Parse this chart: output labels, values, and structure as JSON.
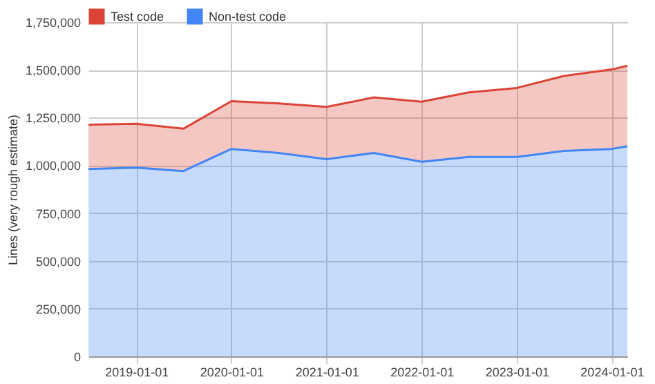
{
  "chart_data": {
    "type": "area",
    "stacked": true,
    "ylabel": "Lines (very rough estimate)",
    "x": [
      "2018-07-01",
      "2019-01-01",
      "2019-07-01",
      "2020-01-01",
      "2020-07-01",
      "2021-01-01",
      "2021-07-01",
      "2022-01-01",
      "2022-07-01",
      "2023-01-01",
      "2023-07-01",
      "2024-01-01",
      "2024-03-01"
    ],
    "series": [
      {
        "name": "Non-test code",
        "color": "#4285f4",
        "values": [
          981000,
          988000,
          970000,
          1086000,
          1065000,
          1032000,
          1065000,
          1019000,
          1044000,
          1044000,
          1076000,
          1086000,
          1100000
        ]
      },
      {
        "name": "Test code",
        "color": "#db4437",
        "values": [
          232000,
          230000,
          222000,
          250000,
          259000,
          274000,
          291000,
          314000,
          338000,
          361000,
          392000,
          416000,
          421000
        ]
      }
    ],
    "xlim": [
      "2018-07-01",
      "2024-03-01"
    ],
    "xticks": [
      "2019-01-01",
      "2020-01-01",
      "2021-01-01",
      "2022-01-01",
      "2023-01-01",
      "2024-01-01"
    ],
    "ylim": [
      0,
      1750000
    ],
    "yticks": [
      0,
      {
        "value": 250000,
        "label": "250,000"
      },
      {
        "value": 500000,
        "label": "500,000"
      },
      {
        "value": 750000,
        "label": "750,000"
      },
      {
        "value": 1000000,
        "label": "1,000,000"
      },
      {
        "value": 1250000,
        "label": "1,250,000"
      },
      {
        "value": 1500000,
        "label": "1,500,000"
      },
      {
        "value": 1750000,
        "label": "1,750,000"
      }
    ],
    "grid": true,
    "legend": "top"
  }
}
